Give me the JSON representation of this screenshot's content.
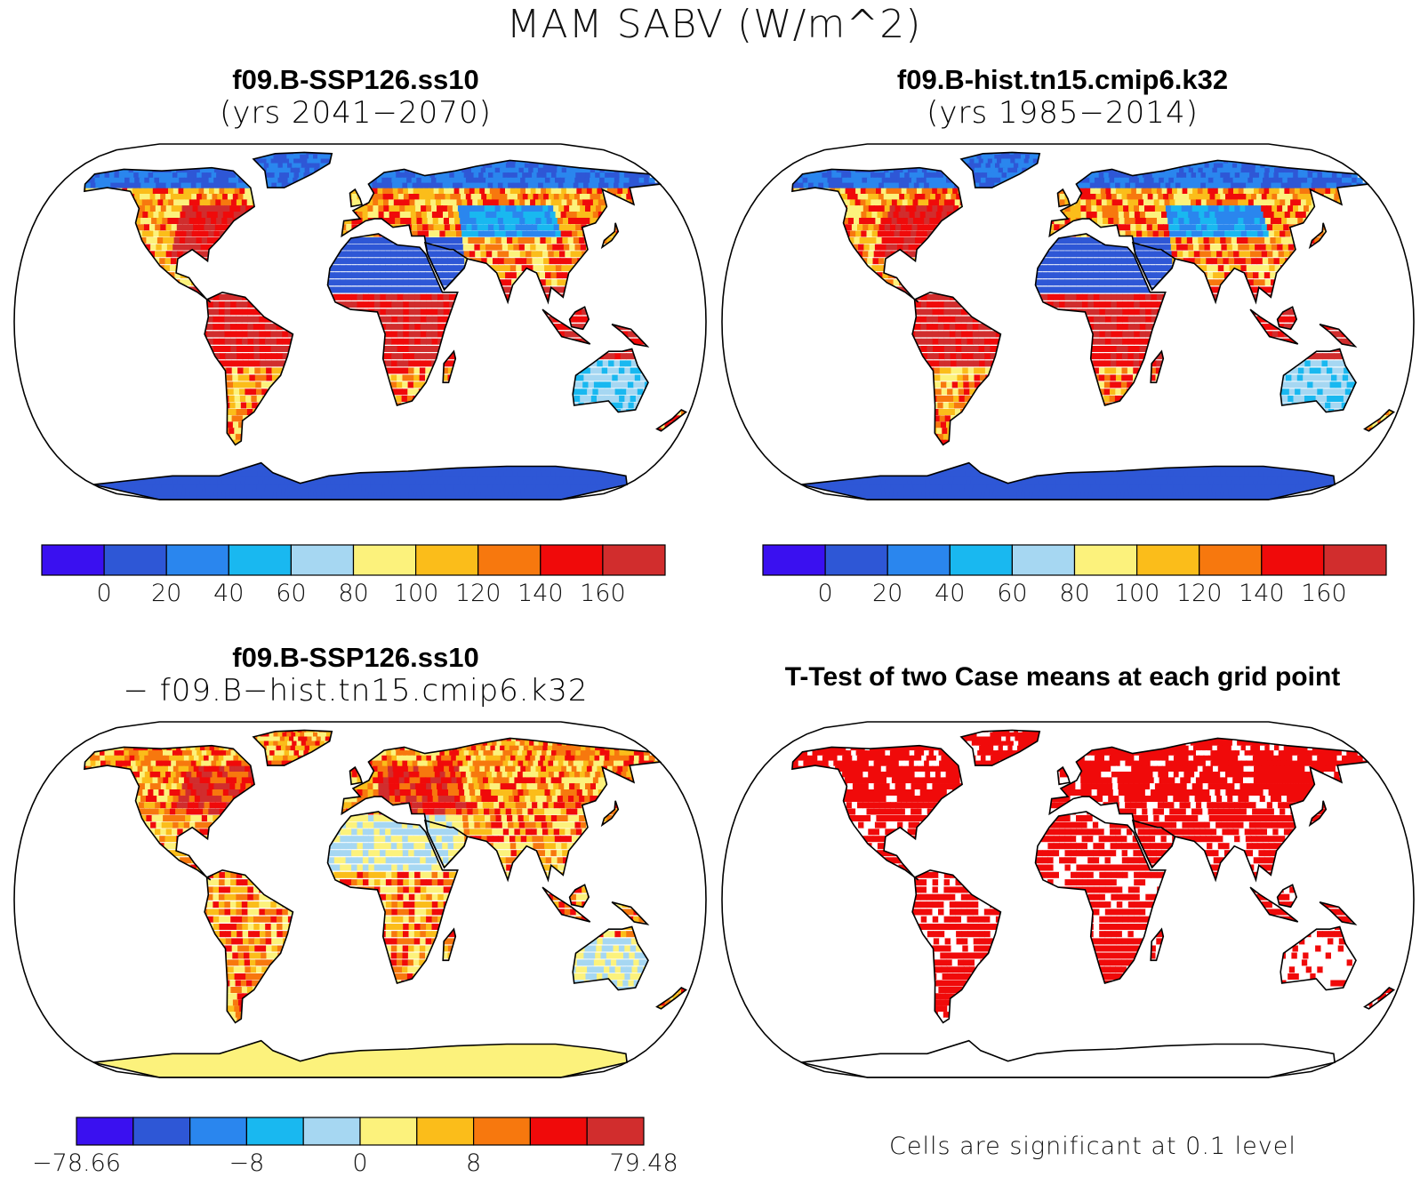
{
  "title": "MAM SABV (W/m^2)",
  "panels": [
    {
      "id": "future",
      "title_line1": "f09.B-SSP126.ss10",
      "title_line2": "(yrs 2041−2070)"
    },
    {
      "id": "historical",
      "title_line1": "f09.B-hist.tn15.cmip6.k32",
      "title_line2": "(yrs 1985−2014)"
    },
    {
      "id": "difference",
      "title_line1": "f09.B-SSP126.ss10",
      "title_line2": "− f09.B−hist.tn15.cmip6.k32"
    },
    {
      "id": "ttest",
      "title_line1": "T-Test of two Case means at each grid point"
    }
  ],
  "colorbar_abs": {
    "colors": [
      "#3a10f0",
      "#2e57d6",
      "#2a86ee",
      "#19b8f0",
      "#a6d7f2",
      "#fcf27c",
      "#fbbd1a",
      "#f7780e",
      "#f00a0a",
      "#d12d2d"
    ],
    "tick_labels": [
      "0",
      "20",
      "40",
      "60",
      "80",
      "100",
      "120",
      "140",
      "160"
    ]
  },
  "colorbar_diff": {
    "colors": [
      "#3a10f0",
      "#2e57d6",
      "#2a86ee",
      "#19b8f0",
      "#a6d7f2",
      "#fcf27c",
      "#fbbd1a",
      "#f7780e",
      "#f00a0a",
      "#d12d2d"
    ],
    "tick_labels": [
      "−78.66",
      "−8",
      "0",
      "8",
      "79.48"
    ]
  },
  "significance_note": "Cells are significant at 0.1 level",
  "colors": {
    "ocean": "#ffffff",
    "coast": "#000000",
    "significant": "#f00a0a"
  }
}
